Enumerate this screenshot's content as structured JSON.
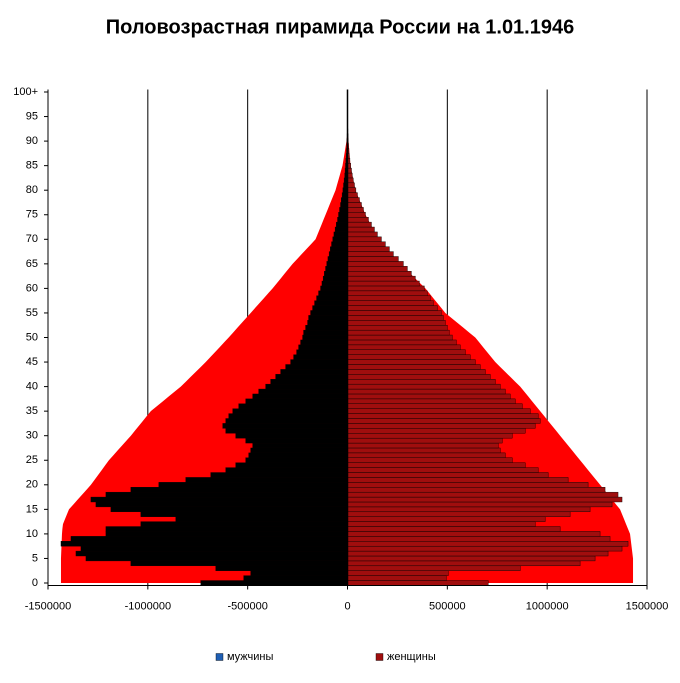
{
  "chart_data": {
    "type": "bar",
    "orientation": "horizontal",
    "title": "Половозрастная пирамида России на 1.01.1946",
    "categories": [
      "0",
      null,
      null,
      null,
      null,
      "5",
      null,
      null,
      null,
      null,
      "10",
      null,
      null,
      null,
      null,
      "15",
      null,
      null,
      null,
      null,
      "20",
      null,
      null,
      null,
      null,
      "25",
      null,
      null,
      null,
      null,
      "30",
      null,
      null,
      null,
      null,
      "35",
      null,
      null,
      null,
      null,
      "40",
      null,
      null,
      null,
      null,
      "45",
      null,
      null,
      null,
      null,
      "50",
      null,
      null,
      null,
      null,
      "55",
      null,
      null,
      null,
      null,
      "60",
      null,
      null,
      null,
      null,
      "65",
      null,
      null,
      null,
      null,
      "70",
      null,
      null,
      null,
      null,
      "75",
      null,
      null,
      null,
      null,
      "80",
      null,
      null,
      null,
      null,
      "85",
      null,
      null,
      null,
      null,
      "90",
      null,
      null,
      null,
      null,
      "95",
      null,
      null,
      null,
      null,
      "100+"
    ],
    "xlim": [
      -1500000,
      1500000
    ],
    "xticks": [
      -1500000,
      -1000000,
      -500000,
      0,
      500000,
      1000000,
      1500000
    ],
    "grid": true,
    "legend": "bottom",
    "series": [
      {
        "type": "area",
        "color": "#ff0000",
        "values": [
          -1435000,
          -1435000,
          -1435000,
          -1435000,
          -1435000,
          -1435000,
          -1434000,
          -1433000,
          -1432000,
          -1431000,
          -1430000,
          -1428000,
          -1425000,
          -1415000,
          -1405000,
          -1395000,
          -1373000,
          -1351000,
          -1329000,
          -1307000,
          -1285000,
          -1267000,
          -1249000,
          -1231000,
          -1213000,
          -1195000,
          -1173000,
          -1151000,
          -1129000,
          -1107000,
          -1085000,
          -1065000,
          -1045000,
          -1025000,
          -1005000,
          -985000,
          -955000,
          -925000,
          -895000,
          -865000,
          -835000,
          -810000,
          -785000,
          -760000,
          -735000,
          -710000,
          -687000,
          -664000,
          -641000,
          -618000,
          -595000,
          -573000,
          -551000,
          -529000,
          -507000,
          -485000,
          -463000,
          -441000,
          -419000,
          -397000,
          -375000,
          -355000,
          -335000,
          -315000,
          -295000,
          -275000,
          -252000,
          -229000,
          -206000,
          -183000,
          -160000,
          -150000,
          -140000,
          -130000,
          -120000,
          -110000,
          -100000,
          -90000,
          -80000,
          -70000,
          -60000,
          -53000,
          -46000,
          -39000,
          -32000,
          -25000,
          -21000,
          -17000,
          -13000,
          -9000,
          -5000,
          -2500,
          0,
          0,
          0,
          0,
          0,
          0,
          0,
          0,
          0
        ]
      },
      {
        "type": "area",
        "color": "#ff0000",
        "values": [
          1430000,
          1430000,
          1430000,
          1430000,
          1430000,
          1430000,
          1427000,
          1424000,
          1421000,
          1418000,
          1415000,
          1405000,
          1395000,
          1385000,
          1375000,
          1365000,
          1345000,
          1325000,
          1305000,
          1285000,
          1265000,
          1245000,
          1225000,
          1205000,
          1185000,
          1165000,
          1145000,
          1125000,
          1105000,
          1085000,
          1065000,
          1045000,
          1025000,
          1005000,
          985000,
          965000,
          945000,
          925000,
          905000,
          885000,
          865000,
          840000,
          815000,
          790000,
          765000,
          740000,
          720000,
          700000,
          680000,
          660000,
          640000,
          610000,
          580000,
          550000,
          520000,
          490000,
          470000,
          450000,
          430000,
          410000,
          390000,
          365000,
          340000,
          315000,
          290000,
          265000,
          243000,
          221000,
          199000,
          177000,
          155000,
          142000,
          129000,
          116000,
          103000,
          90000,
          80000,
          70000,
          60000,
          50000,
          40000,
          35000,
          30000,
          25000,
          20000,
          15000,
          13000,
          11000,
          9000,
          7000,
          5000,
          2500,
          0,
          0,
          0,
          0,
          0,
          0,
          0,
          0,
          0
        ]
      },
      {
        "type": "bar",
        "name": "мужчины",
        "color": "#000000",
        "legend_color": "#1f5fb4",
        "values": [
          -735000,
          -520000,
          -485000,
          -660000,
          -1085000,
          -1310000,
          -1360000,
          -1335000,
          -1435000,
          -1385000,
          -1210000,
          -1210000,
          -1035000,
          -860000,
          -1035000,
          -1185000,
          -1260000,
          -1285000,
          -1210000,
          -1085000,
          -945000,
          -810000,
          -685000,
          -610000,
          -560000,
          -510000,
          -495000,
          -485000,
          -475000,
          -510000,
          -560000,
          -610000,
          -625000,
          -610000,
          -595000,
          -575000,
          -545000,
          -510000,
          -475000,
          -445000,
          -410000,
          -385000,
          -360000,
          -335000,
          -310000,
          -285000,
          -270000,
          -255000,
          -245000,
          -235000,
          -225000,
          -220000,
          -210000,
          -200000,
          -195000,
          -185000,
          -175000,
          -165000,
          -155000,
          -145000,
          -135000,
          -128000,
          -122000,
          -116000,
          -110000,
          -104000,
          -98000,
          -92000,
          -86000,
          -80000,
          -74000,
          -68000,
          -62000,
          -56000,
          -50000,
          -45000,
          -40000,
          -35000,
          -31000,
          -27000,
          -23000,
          -20000,
          -17000,
          -14000,
          -12000,
          -10000,
          -8000,
          -6000,
          -5000,
          -4000,
          -3000,
          -2000,
          -1000,
          0,
          0,
          0,
          0,
          0,
          0,
          0,
          0
        ]
      },
      {
        "type": "bar",
        "name": "женщины",
        "color": "#a00e0e",
        "values": [
          705000,
          495000,
          505000,
          865000,
          1165000,
          1240000,
          1305000,
          1375000,
          1405000,
          1315000,
          1265000,
          1065000,
          940000,
          990000,
          1115000,
          1215000,
          1325000,
          1375000,
          1355000,
          1290000,
          1205000,
          1105000,
          1005000,
          955000,
          890000,
          825000,
          790000,
          765000,
          755000,
          775000,
          825000,
          890000,
          940000,
          965000,
          955000,
          915000,
          875000,
          840000,
          815000,
          790000,
          765000,
          740000,
          715000,
          690000,
          665000,
          640000,
          615000,
          590000,
          565000,
          545000,
          525000,
          510000,
          500000,
          490000,
          480000,
          470000,
          450000,
          430000,
          415000,
          400000,
          385000,
          360000,
          340000,
          320000,
          300000,
          280000,
          255000,
          230000,
          210000,
          190000,
          170000,
          150000,
          135000,
          120000,
          105000,
          90000,
          80000,
          70000,
          60000,
          50000,
          42000,
          35000,
          29000,
          24000,
          20000,
          16000,
          12000,
          9000,
          7000,
          5000,
          4000,
          3000,
          2000,
          1000,
          0,
          0,
          0,
          0,
          0,
          0,
          0
        ]
      }
    ]
  }
}
